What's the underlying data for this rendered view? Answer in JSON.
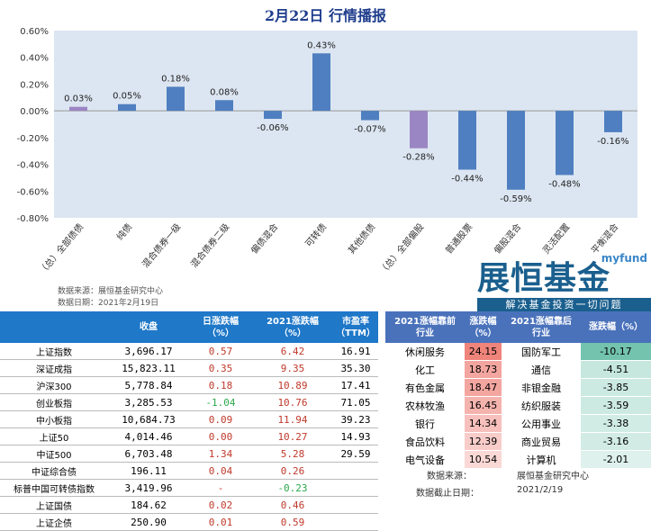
{
  "title": "2月22日  行情播报",
  "chart_data": {
    "type": "bar",
    "categories": [
      "（总）全部债债",
      "纯债",
      "混合债券一级",
      "混合债券二级",
      "偏债混合",
      "可转债",
      "其他债债",
      "（总）全部偏股",
      "普通股票",
      "偏股混合",
      "灵活配置",
      "平衡混合"
    ],
    "values": [
      0.03,
      0.05,
      0.18,
      0.08,
      -0.06,
      0.43,
      -0.07,
      -0.28,
      -0.44,
      -0.59,
      -0.48,
      -0.16
    ],
    "data_labels": [
      "0.03%",
      "0.05%",
      "0.18%",
      "0.08%",
      "-0.06%",
      "0.43%",
      "-0.07%",
      "-0.28%",
      "-0.44%",
      "-0.59%",
      "-0.48%",
      "-0.16%"
    ],
    "highlighted": [
      0,
      7
    ],
    "ylim": [
      -0.8,
      0.6
    ],
    "yticks": [
      "0.60%",
      "0.40%",
      "0.20%",
      "0.00%",
      "-0.20%",
      "-0.40%",
      "-0.60%",
      "-0.80%"
    ],
    "colors": {
      "bar": "#4f7fc0",
      "highlight": "#9b86c4",
      "plot_bg": "#dce6f2"
    }
  },
  "source": {
    "line1": "数据来源：展恒基金研究中心",
    "line2": "数据日期：2021年2月19日"
  },
  "logo": {
    "brand": "myfund",
    "name": "展恒基金",
    "slogan": "解决基金投资一切问题"
  },
  "left_table": {
    "headers": [
      "",
      "收盘",
      "日涨跌幅\n（%）",
      "2021涨跌幅\n（%）",
      "市盈率\n（TTM）"
    ],
    "rows": [
      [
        "上证指数",
        "3,696.17",
        "0.57",
        "6.42",
        "16.91"
      ],
      [
        "深证成指",
        "15,823.11",
        "0.35",
        "9.35",
        "35.30"
      ],
      [
        "沪深300",
        "5,778.84",
        "0.18",
        "10.89",
        "17.41"
      ],
      [
        "创业板指",
        "3,285.53",
        "-1.04",
        "10.76",
        "71.05"
      ],
      [
        "中小板指",
        "10,684.73",
        "0.09",
        "11.94",
        "39.23"
      ],
      [
        "上证50",
        "4,014.46",
        "0.00",
        "10.27",
        "14.93"
      ],
      [
        "中证500",
        "6,703.48",
        "1.34",
        "5.28",
        "29.59"
      ],
      [
        "中证综合债",
        "196.11",
        "0.04",
        "0.26",
        ""
      ],
      [
        "标普中国可转债指数",
        "3,419.96",
        "-",
        "-0.23",
        ""
      ],
      [
        "上证国债",
        "184.62",
        "0.02",
        "0.46",
        ""
      ],
      [
        "上证企债",
        "250.90",
        "0.01",
        "0.59",
        ""
      ]
    ]
  },
  "right_table": {
    "headers": [
      "2021涨幅靠前\n行业",
      "涨跌幅\n（%）",
      "2021涨幅靠后\n行业",
      "涨跌幅（%）"
    ],
    "rows": [
      [
        "休闲服务",
        "24.15",
        "国防军工",
        "-10.17"
      ],
      [
        "化工",
        "18.73",
        "通信",
        "-4.51"
      ],
      [
        "有色金属",
        "18.47",
        "非银金融",
        "-3.85"
      ],
      [
        "农林牧渔",
        "16.45",
        "纺织服装",
        "-3.59"
      ],
      [
        "银行",
        "14.34",
        "公用事业",
        "-3.38"
      ],
      [
        "食品饮料",
        "12.39",
        "商业贸易",
        "-3.16"
      ],
      [
        "电气设备",
        "10.54",
        "计算机",
        "-2.01"
      ]
    ]
  },
  "notes": {
    "source_label": "数据来源：",
    "source_value": "展恒基金研究中心",
    "date_label": "数据截止日期：",
    "date_value": "2021/2/19"
  }
}
